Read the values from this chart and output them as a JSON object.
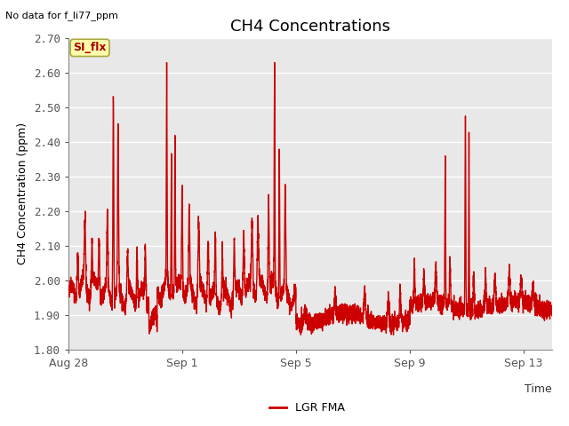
{
  "title": "CH4 Concentrations",
  "subtitle": "No data for f_li77_ppm",
  "xlabel": "Time",
  "ylabel": "CH4 Concentration (ppm)",
  "ylim": [
    1.8,
    2.7
  ],
  "yticks": [
    1.8,
    1.9,
    2.0,
    2.1,
    2.2,
    2.3,
    2.4,
    2.5,
    2.6,
    2.7
  ],
  "line_color": "#cc0000",
  "line_width": 1.0,
  "plot_bg": "#e8e8e8",
  "legend_label": "LGR FMA",
  "legend_line_color": "#cc0000",
  "si_flx_label": "SI_flx",
  "si_flx_bg": "#ffffaa",
  "si_flx_border": "#aaa840",
  "xtick_hours": [
    0,
    96,
    192,
    288,
    384
  ],
  "xtick_labels": [
    "Aug 28",
    "Sep 1",
    "Sep 5",
    "Sep 9",
    "Sep 13"
  ],
  "total_hours": 408,
  "title_fontsize": 13,
  "label_fontsize": 9,
  "tick_fontsize": 9
}
